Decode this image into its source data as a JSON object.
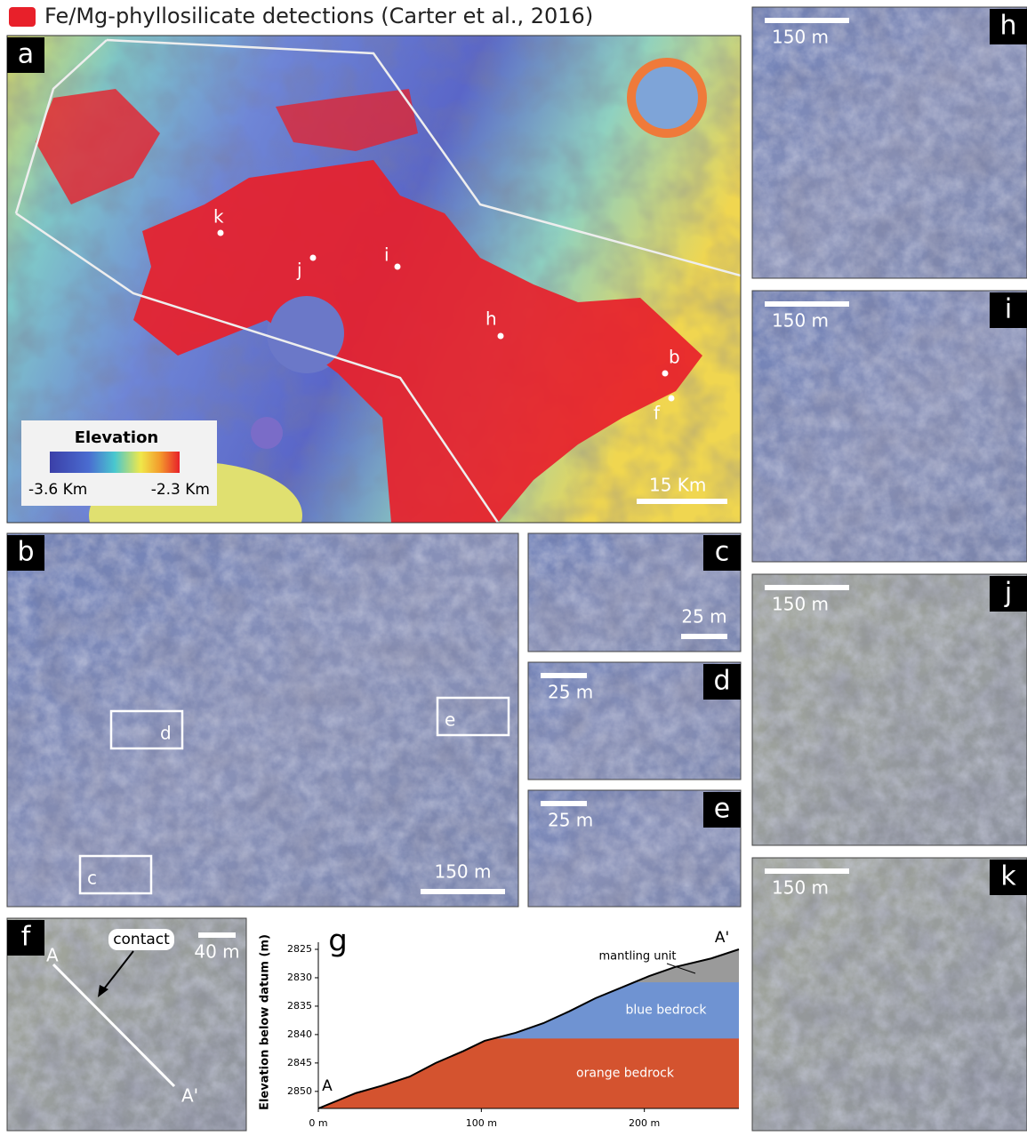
{
  "legend": {
    "label": "Fe/Mg-phyllosilicate detections (Carter et al., 2016)",
    "color": "#e8202a"
  },
  "panels": {
    "a": {
      "label": "a",
      "sites": [
        "k",
        "j",
        "i",
        "h",
        "b",
        "f"
      ],
      "colorbar": {
        "title": "Elevation",
        "min": "-3.6 Km",
        "max": "-2.3 Km"
      },
      "scale": "15 Km"
    },
    "b": {
      "label": "b",
      "boxes": [
        "d",
        "e",
        "c"
      ],
      "scale": "150 m"
    },
    "c": {
      "label": "c",
      "scale": "25 m"
    },
    "d": {
      "label": "d",
      "scale": "25 m"
    },
    "e": {
      "label": "e",
      "scale": "25 m"
    },
    "f": {
      "label": "f",
      "annotation": "contact",
      "endpoints": [
        "A",
        "A'"
      ],
      "scale": "40 m"
    },
    "h": {
      "label": "h",
      "scale": "150 m"
    },
    "i": {
      "label": "i",
      "scale": "150 m"
    },
    "j": {
      "label": "j",
      "scale": "150 m"
    },
    "k": {
      "label": "k",
      "scale": "150 m"
    }
  },
  "chart_data": {
    "type": "profile",
    "panel_label": "g",
    "y_label": "Elevation below datum (m)",
    "endpoints": [
      "A",
      "A'"
    ],
    "x": [
      0,
      23,
      39,
      56,
      72,
      89,
      102,
      121,
      138,
      154,
      170,
      187,
      203,
      219,
      241,
      258
    ],
    "values": [
      2853,
      2850.3,
      2849,
      2847.4,
      2845,
      2842.9,
      2841.1,
      2839.7,
      2838,
      2835.9,
      2833.6,
      2831.6,
      2829.7,
      2828.1,
      2826.6,
      2825
    ],
    "layers": [
      {
        "name": "orange bedrock",
        "color": "#d4532f",
        "top": 2840.7
      },
      {
        "name": "blue bedrock",
        "color": "#6f93d2",
        "top": 2830.8
      },
      {
        "name": "mantling unit",
        "color": "#9a9a9a"
      }
    ],
    "xlim": [
      0,
      258
    ],
    "ylim": [
      2853,
      2825
    ],
    "xticks": [
      {
        "value": 0,
        "label": "0 m"
      },
      {
        "value": 100,
        "label": "100 m"
      },
      {
        "value": 200,
        "label": "200 m"
      }
    ],
    "yticks": [
      2825,
      2830,
      2835,
      2840,
      2845,
      2850
    ]
  }
}
